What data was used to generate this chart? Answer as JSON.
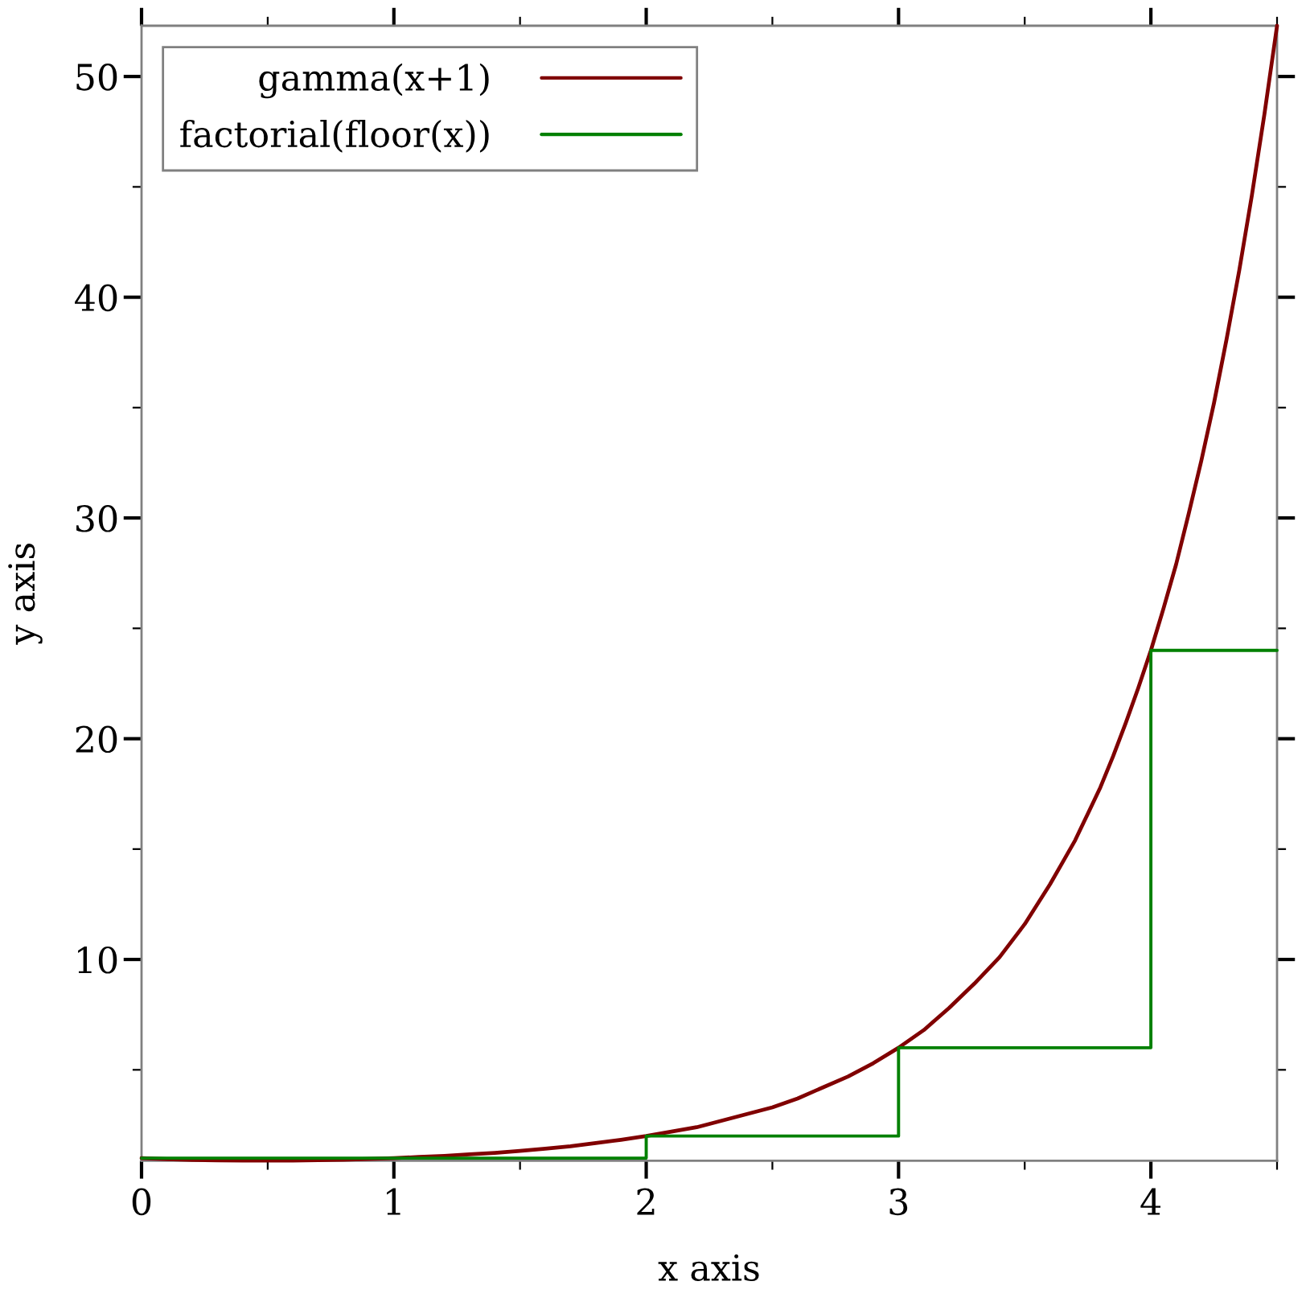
{
  "chart_data": {
    "type": "line",
    "xlabel": "x axis",
    "ylabel": "y axis",
    "xlim": [
      0,
      4.5
    ],
    "ylim": [
      0.88,
      52.3
    ],
    "xticks": [
      0,
      {
        "value": 0.5,
        "label": null
      },
      1,
      {
        "value": 1.5,
        "label": null
      },
      2,
      {
        "value": 2.5,
        "label": null
      },
      3,
      {
        "value": 3.5,
        "label": null
      },
      4,
      {
        "value": 4.5,
        "label": null
      }
    ],
    "yticks": [
      {
        "value": 5,
        "label": null
      },
      10,
      {
        "value": 15,
        "label": null
      },
      20,
      {
        "value": 25,
        "label": null
      },
      30,
      {
        "value": 35,
        "label": null
      },
      40,
      {
        "value": 45,
        "label": null
      },
      50
    ],
    "legend": "top left",
    "line_style": "solid",
    "marker": "none",
    "series": [
      {
        "name": "gamma(x+1)",
        "color": "#800000",
        "x": [
          0,
          0.1,
          0.2,
          0.3,
          0.4,
          0.5,
          0.6,
          0.7,
          0.8,
          0.9,
          1.0,
          1.1,
          1.2,
          1.3,
          1.4,
          1.5,
          1.6,
          1.7,
          1.8,
          1.9,
          2.0,
          2.1,
          2.2,
          2.3,
          2.4,
          2.5,
          2.6,
          2.7,
          2.8,
          2.9,
          3.0,
          3.1,
          3.2,
          3.3,
          3.4,
          3.5,
          3.55,
          3.6,
          3.65,
          3.7,
          3.75,
          3.8,
          3.85,
          3.9,
          3.95,
          4.0,
          4.05,
          4.1,
          4.15,
          4.2,
          4.25,
          4.3,
          4.35,
          4.4,
          4.45,
          4.5
        ],
        "values": [
          1.0,
          0.95,
          0.92,
          0.9,
          0.89,
          0.89,
          0.89,
          0.91,
          0.93,
          0.96,
          1.0,
          1.05,
          1.1,
          1.17,
          1.24,
          1.33,
          1.43,
          1.54,
          1.68,
          1.83,
          2.0,
          2.2,
          2.4,
          2.7,
          3.0,
          3.3,
          3.7,
          4.2,
          4.7,
          5.3,
          6.0,
          6.8,
          7.8,
          8.9,
          10.1,
          11.6,
          12.5,
          13.4,
          14.4,
          15.4,
          16.6,
          17.8,
          19.2,
          20.7,
          22.3,
          24.0,
          25.9,
          27.9,
          30.2,
          32.6,
          35.2,
          38.1,
          41.2,
          44.6,
          48.3,
          52.3
        ]
      },
      {
        "name": "factorial(floor(x))",
        "color": "#008000",
        "type": "step",
        "x": [
          0,
          1,
          2,
          3,
          4,
          4.5
        ],
        "values": [
          1,
          1,
          2,
          6,
          24,
          24
        ]
      }
    ]
  }
}
